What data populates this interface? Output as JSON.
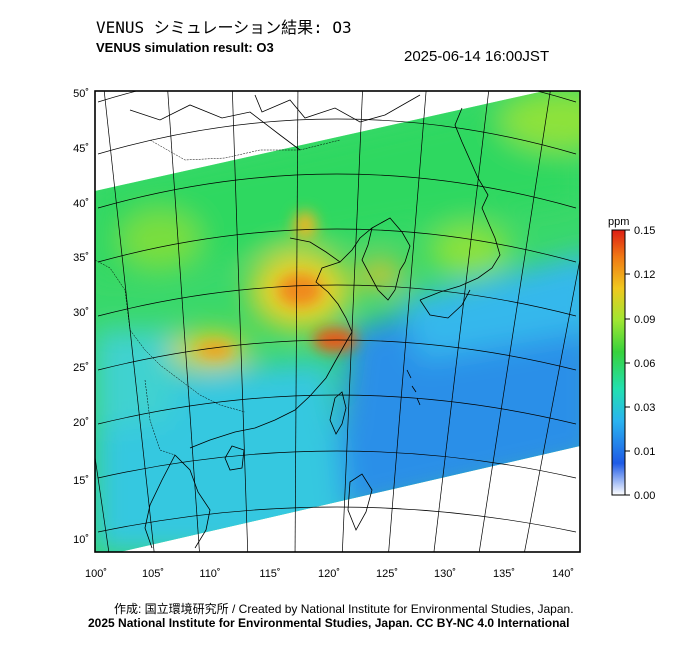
{
  "title_jp": "VENUS シミュレーション結果: O3",
  "title_en": "VENUS simulation result: O3",
  "timestamp": "2025-06-14 16:00JST",
  "colorbar": {
    "unit": "ppm",
    "ticks": [
      "0.15",
      "0.12",
      "0.09",
      "0.06",
      "0.03",
      "0.01",
      "0.00"
    ],
    "colors": [
      "#ffffff",
      "#1e5ae6",
      "#2ab4f0",
      "#22e0b0",
      "#37d23c",
      "#a0e632",
      "#f0c81e",
      "#f07814",
      "#dc1e14"
    ]
  },
  "axes": {
    "lon_labels": [
      "100˚",
      "105˚",
      "110˚",
      "115˚",
      "120˚",
      "125˚",
      "130˚",
      "135˚",
      "140˚"
    ],
    "lat_labels": [
      "50˚",
      "45˚",
      "40˚",
      "35˚",
      "30˚",
      "25˚",
      "20˚",
      "15˚",
      "10˚"
    ]
  },
  "credit_line1": "作成: 国立環境研究所 / Created by National Institute for Environmental Studies, Japan.",
  "credit_line2": "2025 National Institute for Environmental Studies, Japan. CC BY-NC 4.0 International"
}
